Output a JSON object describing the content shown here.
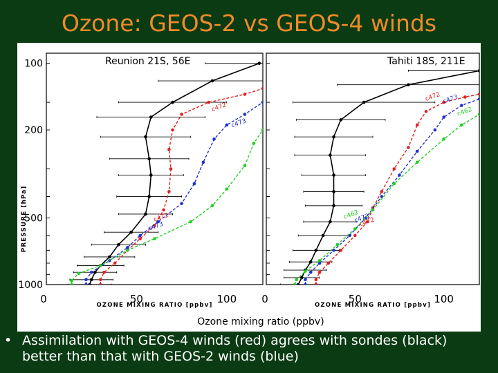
{
  "slide": {
    "title": "Ozone: GEOS-2 vs GEOS-4  winds",
    "bullet_marker": "•",
    "bullet_line1": "Assimilation with GEOS-4 winds (red) agrees with sondes (black)",
    "bullet_line2": "better than that with GEOS-2 winds (blue)"
  },
  "colors": {
    "background": "#0b3b13",
    "title": "#f08a2a",
    "sonde": "#000000",
    "geos4": "#e02020",
    "geos2": "#2030d0",
    "green": "#20d020"
  },
  "chart_data": {
    "type": "line",
    "xlabel": "Ozone mixing ratio (ppbv)",
    "inner_xlabel": "OZONE MIXING RATIO [ppbv]",
    "ylabel": "PRESSURE [hPa]",
    "y_scale": "log",
    "ylim": [
      1000,
      90
    ],
    "xlim": [
      0,
      120
    ],
    "y_ticks": [
      100,
      200,
      500,
      1000
    ],
    "y_tick_labels": [
      "100",
      "200",
      "500",
      "1000"
    ],
    "x_ticks": [
      0,
      50,
      100
    ],
    "x_tick_labels": [
      "0",
      "50",
      "100"
    ],
    "panels": [
      {
        "title": "Reunion 21S, 56E",
        "annotations": [
          {
            "text": "c472",
            "x": 92,
            "y": 165,
            "color": "#e02020"
          },
          {
            "text": "c473",
            "x": 103,
            "y": 195,
            "color": "#2030d0"
          },
          {
            "text": "c472",
            "x": 60,
            "y": 520,
            "color": "#e02020"
          },
          {
            "text": "c473",
            "x": 57,
            "y": 570,
            "color": "#2030d0"
          }
        ],
        "series": [
          {
            "name": "Sondes",
            "color": "#000000",
            "style": "solid",
            "points": [
              [
                24,
                1000
              ],
              [
                25,
                950
              ],
              [
                27,
                880
              ],
              [
                30,
                820
              ],
              [
                35,
                750
              ],
              [
                40,
                660
              ],
              [
                47,
                580
              ],
              [
                55,
                480
              ],
              [
                57,
                400
              ],
              [
                58,
                320
              ],
              [
                57,
                270
              ],
              [
                55,
                215
              ],
              [
                58,
                175
              ],
              [
                70,
                150
              ],
              [
                92,
                120
              ],
              [
                118,
                100
              ]
            ],
            "errors": [
              12,
              12,
              12,
              13,
              14,
              15,
              15,
              15,
              18,
              18,
              22,
              25,
              30,
              30,
              30,
              30
            ]
          },
          {
            "name": "GEOS-4",
            "color": "#e02020",
            "style": "dashed",
            "points": [
              [
                30,
                1000
              ],
              [
                30,
                950
              ],
              [
                32,
                880
              ],
              [
                38,
                800
              ],
              [
                45,
                700
              ],
              [
                52,
                620
              ],
              [
                60,
                540
              ],
              [
                65,
                460
              ],
              [
                68,
                380
              ],
              [
                69,
                300
              ],
              [
                68,
                245
              ],
              [
                70,
                200
              ],
              [
                75,
                170
              ],
              [
                90,
                150
              ],
              [
                110,
                138
              ],
              [
                120,
                130
              ]
            ]
          },
          {
            "name": "GEOS-2",
            "color": "#2030d0",
            "style": "dashed",
            "points": [
              [
                22,
                1000
              ],
              [
                22,
                950
              ],
              [
                25,
                880
              ],
              [
                35,
                780
              ],
              [
                45,
                680
              ],
              [
                52,
                600
              ],
              [
                62,
                520
              ],
              [
                75,
                430
              ],
              [
                82,
                350
              ],
              [
                87,
                280
              ],
              [
                93,
                220
              ],
              [
                100,
                190
              ],
              [
                110,
                170
              ],
              [
                120,
                150
              ]
            ]
          },
          {
            "name": "Green",
            "color": "#20d020",
            "style": "dashed",
            "points": [
              [
                14,
                1000
              ],
              [
                14,
                960
              ],
              [
                18,
                890
              ],
              [
                30,
                820
              ],
              [
                45,
                700
              ],
              [
                60,
                620
              ],
              [
                80,
                520
              ],
              [
                92,
                440
              ],
              [
                100,
                370
              ],
              [
                110,
                290
              ],
              [
                115,
                230
              ],
              [
                120,
                200
              ]
            ]
          }
        ]
      },
      {
        "title": "Tahiti 18S, 211E",
        "annotations": [
          {
            "text": "c472",
            "x": 90,
            "y": 148,
            "color": "#e02020"
          },
          {
            "text": "c473",
            "x": 100,
            "y": 152,
            "color": "#2030d0"
          },
          {
            "text": "c462",
            "x": 108,
            "y": 173,
            "color": "#20d020"
          },
          {
            "text": "c472",
            "x": 53,
            "y": 545,
            "color": "#e02020"
          },
          {
            "text": "c473",
            "x": 50,
            "y": 525,
            "color": "#2030d0"
          },
          {
            "text": "c462",
            "x": 44,
            "y": 505,
            "color": "#20d020"
          }
        ],
        "series": [
          {
            "name": "Sondes",
            "color": "#000000",
            "style": "solid",
            "points": [
              [
                18,
                1000
              ],
              [
                20,
                930
              ],
              [
                22,
                860
              ],
              [
                25,
                790
              ],
              [
                28,
                700
              ],
              [
                32,
                600
              ],
              [
                36,
                520
              ],
              [
                38,
                440
              ],
              [
                38,
                380
              ],
              [
                38,
                320
              ],
              [
                36,
                260
              ],
              [
                38,
                215
              ],
              [
                42,
                180
              ],
              [
                55,
                150
              ],
              [
                80,
                125
              ],
              [
                120,
                108
              ]
            ],
            "errors": [
              10,
              10,
              12,
              12,
              13,
              14,
              15,
              16,
              17,
              18,
              20,
              22,
              25,
              40,
              40,
              40
            ]
          },
          {
            "name": "GEOS-4",
            "color": "#e02020",
            "style": "dashed",
            "points": [
              [
                28,
                1000
              ],
              [
                28,
                950
              ],
              [
                30,
                880
              ],
              [
                35,
                800
              ],
              [
                42,
                700
              ],
              [
                50,
                600
              ],
              [
                57,
                520
              ],
              [
                60,
                450
              ],
              [
                65,
                380
              ],
              [
                72,
                300
              ],
              [
                80,
                240
              ],
              [
                85,
                190
              ],
              [
                90,
                165
              ],
              [
                100,
                150
              ],
              [
                112,
                142
              ],
              [
                120,
                138
              ]
            ]
          },
          {
            "name": "GEOS-2",
            "color": "#2030d0",
            "style": "dashed",
            "points": [
              [
                22,
                1000
              ],
              [
                22,
                950
              ],
              [
                25,
                880
              ],
              [
                30,
                800
              ],
              [
                38,
                700
              ],
              [
                47,
                600
              ],
              [
                56,
                500
              ],
              [
                65,
                400
              ],
              [
                75,
                320
              ],
              [
                85,
                250
              ],
              [
                95,
                200
              ],
              [
                100,
                175
              ],
              [
                110,
                155
              ],
              [
                120,
                145
              ]
            ]
          },
          {
            "name": "Green",
            "color": "#20d020",
            "style": "dashed",
            "points": [
              [
                16,
                1000
              ],
              [
                17,
                950
              ],
              [
                22,
                870
              ],
              [
                30,
                780
              ],
              [
                40,
                660
              ],
              [
                50,
                560
              ],
              [
                60,
                460
              ],
              [
                72,
                350
              ],
              [
                85,
                280
              ],
              [
                100,
                220
              ],
              [
                110,
                190
              ],
              [
                120,
                170
              ]
            ]
          }
        ]
      }
    ]
  }
}
